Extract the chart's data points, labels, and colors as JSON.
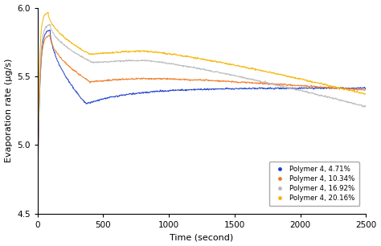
{
  "title": "",
  "xlabel": "Time (second)",
  "ylabel": "Evaporation rate (μg/s)",
  "xlim": [
    0,
    2500
  ],
  "ylim": [
    4.5,
    6.0
  ],
  "yticks": [
    4.5,
    5.0,
    5.5,
    6.0
  ],
  "xticks": [
    0,
    500,
    1000,
    1500,
    2000,
    2500
  ],
  "series": [
    {
      "label": "Polymer 4, 4.71%",
      "color": "#1a3ecc",
      "peak_time": 95,
      "start_val": 4.63,
      "peak_val": 5.84,
      "trough_val": 5.3,
      "trough_time": 370,
      "plateau_val": 5.415,
      "end_val": 5.415,
      "noise": 0.007
    },
    {
      "label": "Polymer 4, 10.34%",
      "color": "#f07820",
      "peak_time": 95,
      "start_val": 4.72,
      "peak_val": 5.8,
      "trough_val": 5.46,
      "trough_time": 400,
      "plateau_val": 5.495,
      "end_val": 5.4,
      "noise": 0.007
    },
    {
      "label": "Polymer 4, 16.92%",
      "color": "#b8b8b8",
      "peak_time": 95,
      "start_val": 4.78,
      "peak_val": 5.88,
      "trough_val": 5.6,
      "trough_time": 420,
      "plateau_val": 5.625,
      "end_val": 5.28,
      "noise": 0.007
    },
    {
      "label": "Polymer 4, 20.16%",
      "color": "#f5b400",
      "peak_time": 80,
      "start_val": 4.85,
      "peak_val": 5.965,
      "trough_val": 5.66,
      "trough_time": 400,
      "plateau_val": 5.695,
      "end_val": 5.37,
      "noise": 0.007
    }
  ],
  "legend_loc": "lower right",
  "background_color": "#ffffff",
  "grid": false,
  "figsize": [
    4.74,
    3.06
  ],
  "dpi": 100
}
